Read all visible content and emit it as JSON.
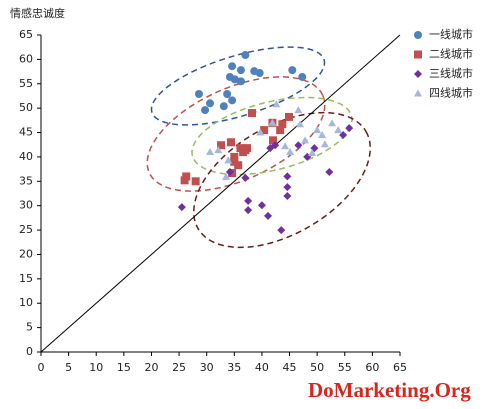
{
  "chart_data": {
    "type": "scatter",
    "y_label": "情感忠诚度",
    "xlim": [
      0,
      65
    ],
    "ylim": [
      0,
      65
    ],
    "xticks": [
      0,
      5,
      10,
      15,
      20,
      25,
      30,
      35,
      40,
      45,
      50,
      55,
      60,
      65
    ],
    "yticks": [
      0,
      5,
      10,
      15,
      20,
      25,
      30,
      35,
      40,
      45,
      50,
      55,
      60,
      65
    ],
    "legend": "right",
    "series": [
      {
        "name": "一线城市",
        "color": "#4f81bd",
        "marker": "circle",
        "x": [
          37,
          34.6,
          36.2,
          38.6,
          39.6,
          34.2,
          35.1,
          36.2,
          45.5,
          47.3,
          28.6,
          30.6,
          33.7,
          34.6,
          29.7,
          33.1
        ],
        "y": [
          60.9,
          58.6,
          57.8,
          57.6,
          57.2,
          56.4,
          55.9,
          55.5,
          57.8,
          56.4,
          52.9,
          51,
          52.9,
          51.6,
          49.6,
          50.4
        ]
      },
      {
        "name": "二线城市",
        "color": "#c0504d",
        "marker": "square",
        "x": [
          26.3,
          28,
          26,
          32.6,
          34.4,
          35,
          35,
          36.1,
          37,
          37.3,
          36.6,
          38.2,
          40.4,
          41.9,
          42,
          43.3,
          44.9,
          43.7,
          34.6,
          35.7
        ],
        "y": [
          36,
          35,
          35.2,
          42.4,
          43,
          40,
          39,
          41.8,
          41.4,
          41.8,
          41,
          49,
          45.5,
          47,
          43.4,
          45.5,
          48.2,
          46.7,
          36.7,
          38.3
        ]
      },
      {
        "name": "三线城市",
        "color": "#7030a0",
        "marker": "diamond",
        "x": [
          25.5,
          34.2,
          37,
          37.5,
          37.5,
          40,
          41.1,
          43.5,
          44.6,
          44.6,
          44.6,
          41.5,
          42.4,
          46.6,
          48.2,
          49.5,
          52.2,
          54.7,
          55.8
        ],
        "y": [
          29.7,
          36.9,
          35.7,
          31,
          29.1,
          30.1,
          27.9,
          25,
          36,
          33.8,
          32,
          41.8,
          42.4,
          42.4,
          40,
          41.8,
          36.9,
          44.5,
          45.9
        ]
      },
      {
        "name": "四线城市",
        "color": "#a5b8d9",
        "marker": "triangle",
        "x": [
          30.6,
          32.1,
          33.5,
          33.9,
          39.7,
          41.9,
          42.6,
          44.2,
          45.1,
          46.6,
          46.9,
          47.8,
          50,
          50.9,
          52.7,
          53.8,
          49.1,
          51.4
        ],
        "y": [
          41,
          41.4,
          35.9,
          39.3,
          45,
          47,
          50.8,
          42.2,
          41,
          49.6,
          46.7,
          43.4,
          45.5,
          44.5,
          46.9,
          45.5,
          40.8,
          42.6
        ]
      }
    ]
  },
  "watermark": "DoMarketing.Org"
}
